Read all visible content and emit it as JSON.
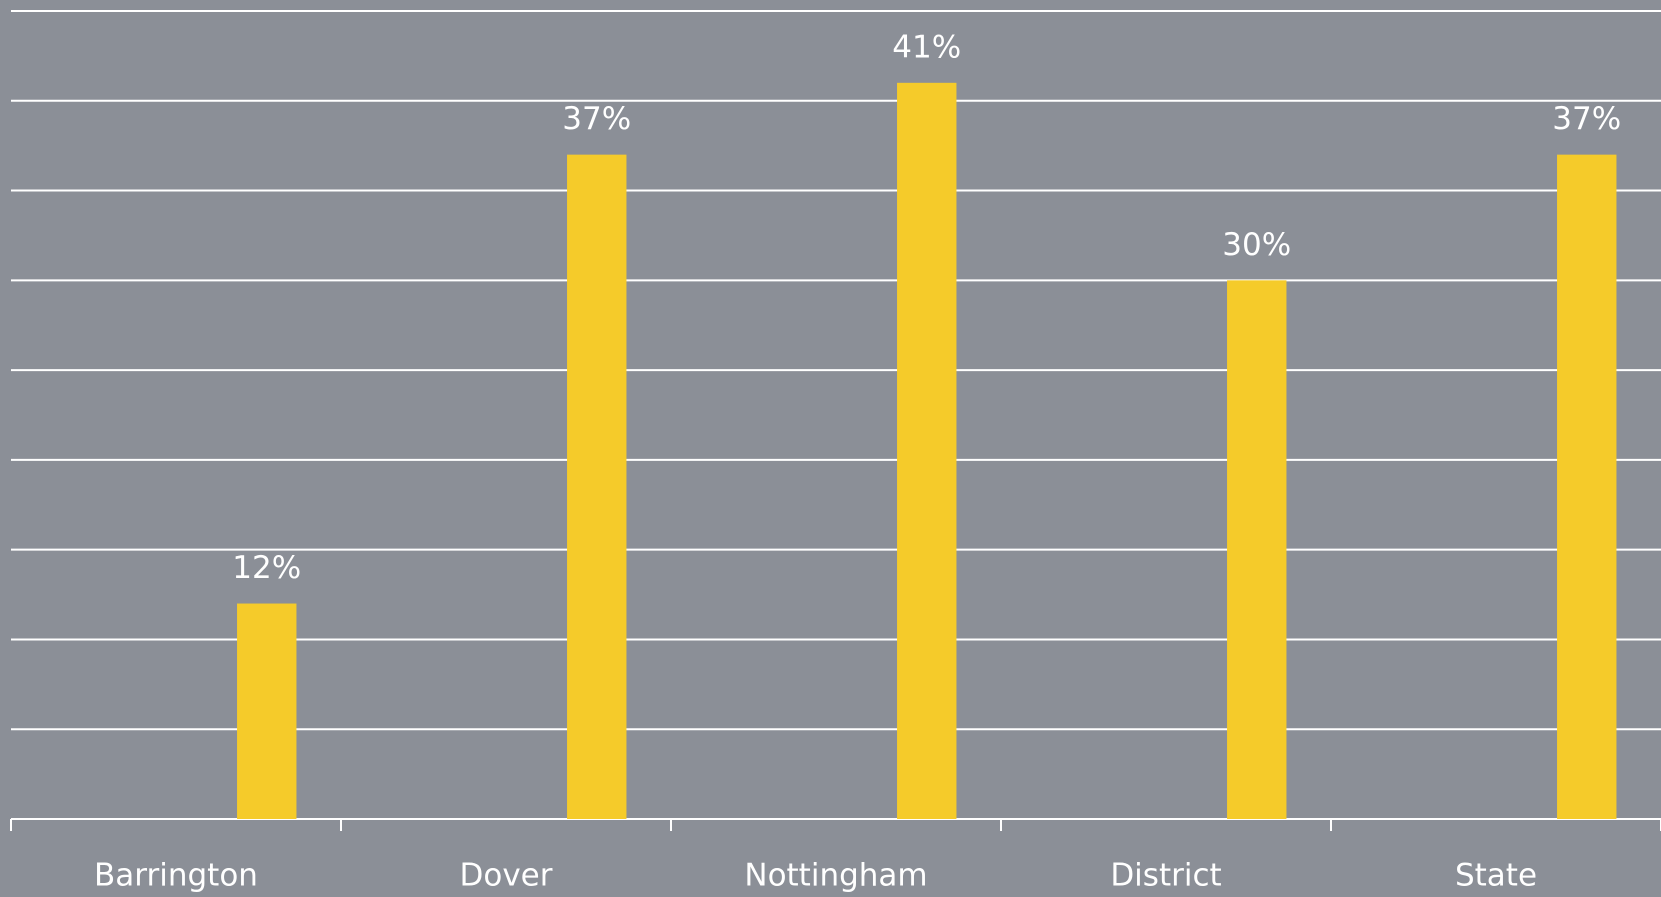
{
  "chart_data": {
    "type": "bar",
    "categories": [
      "Barrington",
      "Dover",
      "Nottingham",
      "District",
      "State"
    ],
    "values": [
      12,
      37,
      41,
      30,
      37
    ],
    "value_labels": [
      "12%",
      "37%",
      "41%",
      "30%",
      "37%"
    ],
    "color": "#f5cb2a",
    "ylim": [
      0,
      45
    ],
    "yticks": [
      0,
      5,
      10,
      15,
      20,
      25,
      30,
      35,
      40,
      45
    ],
    "grid": true
  }
}
